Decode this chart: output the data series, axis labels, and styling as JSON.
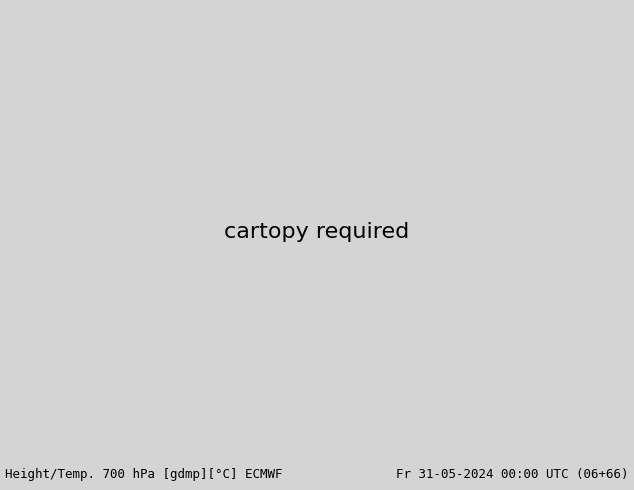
{
  "title_left": "Height/Temp. 700 hPa [gdmp][°C] ECMWF",
  "title_right": "Fr 31-05-2024 00:00 UTC (06+66)",
  "bg_color": "#d4d4d4",
  "label_bar_color": "#d4d4d4",
  "label_fontsize": 9.0,
  "label_color": "#000000",
  "fig_width": 6.34,
  "fig_height": 4.9,
  "dpi": 100,
  "extent": [
    25,
    155,
    5,
    75
  ],
  "ocean_color": "#b0d0e8",
  "land_color_low": "#d4e0b0",
  "land_color_mid": "#c8d49c",
  "tibet_color": "#c8aa80",
  "contour_black_lw": 2.0,
  "contour_orange_color": "#d47820",
  "contour_pink_color": "#e0008c",
  "contour_red_color": "#cc2000",
  "contour_dash_lw": 1.6
}
